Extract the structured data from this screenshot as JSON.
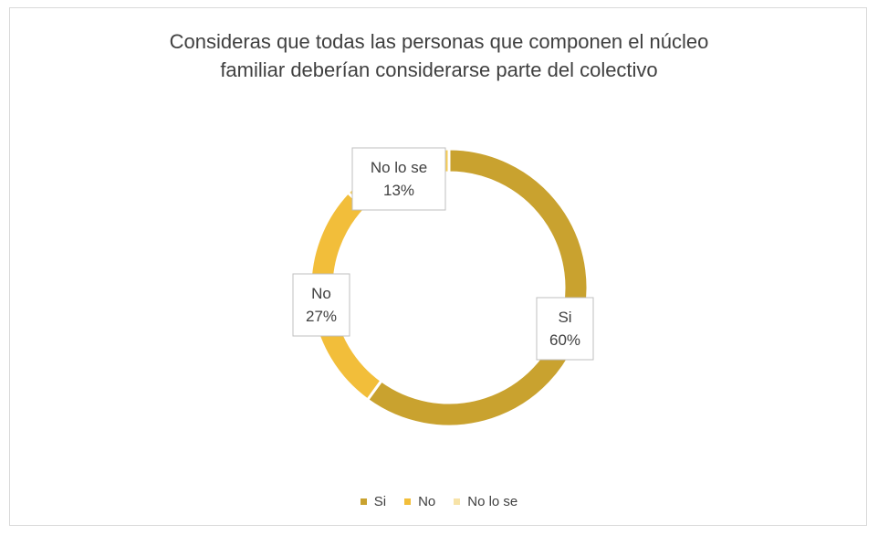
{
  "chart_data": {
    "type": "pie",
    "style": "doughnut",
    "title_lines": [
      "Consideras que todas las personas que componen el núcleo",
      "familiar deberían considerarse parte del colectivo"
    ],
    "slices": [
      {
        "name": "Si",
        "value": 60,
        "label_line1": "Si",
        "label_line2": "60%",
        "color": "#C9A22F"
      },
      {
        "name": "No",
        "value": 27,
        "label_line1": "No",
        "label_line2": "27%",
        "color": "#F2BE3A"
      },
      {
        "name": "No lo se",
        "value": 13,
        "label_line1": "No lo se",
        "label_line2": "13%",
        "color": "#F7CD55"
      }
    ],
    "legend_position": "bottom"
  }
}
